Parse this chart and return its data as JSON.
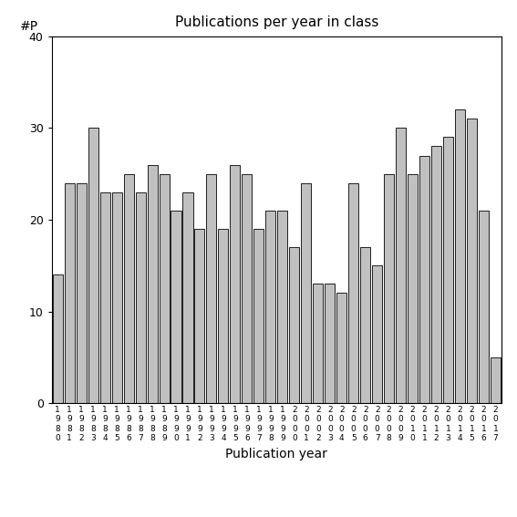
{
  "title": "Publications per year in class",
  "xlabel": "Publication year",
  "ylabel": "#P",
  "bar_color": "#c0c0c0",
  "bar_edgecolor": "#000000",
  "ylim": [
    0,
    40
  ],
  "yticks": [
    0,
    10,
    20,
    30,
    40
  ],
  "years": [
    "1980",
    "1981",
    "1982",
    "1983",
    "1984",
    "1985",
    "1986",
    "1987",
    "1988",
    "1989",
    "1990",
    "1991",
    "1992",
    "1993",
    "1994",
    "1995",
    "1996",
    "1997",
    "1998",
    "1999",
    "2000",
    "2001",
    "2002",
    "2003",
    "2004",
    "2005",
    "2006",
    "2007",
    "2008",
    "2009",
    "2010",
    "2011",
    "2012",
    "2013",
    "2014",
    "2015",
    "2016",
    "2017"
  ],
  "values": [
    14,
    24,
    24,
    30,
    23,
    23,
    25,
    23,
    26,
    25,
    21,
    23,
    19,
    25,
    19,
    26,
    25,
    19,
    21,
    21,
    17,
    24,
    13,
    13,
    12,
    24,
    17,
    15,
    25,
    30,
    25,
    27,
    28,
    29,
    32,
    31,
    21,
    5
  ]
}
